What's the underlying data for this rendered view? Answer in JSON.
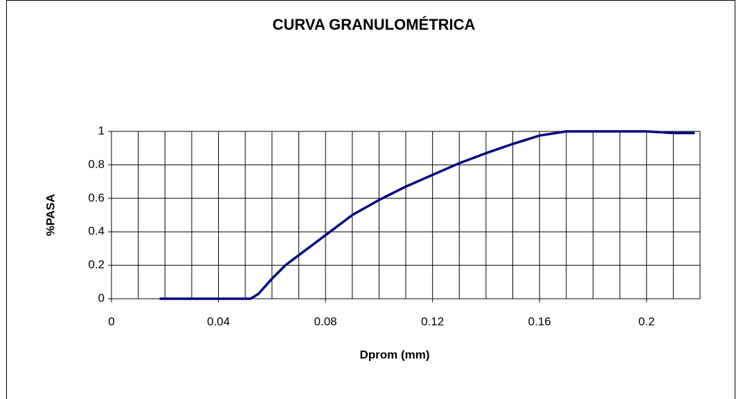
{
  "chart_data": {
    "type": "line",
    "title": "CURVA GRANULOMÉTRICA",
    "xlabel": "Dprom (mm)",
    "ylabel": "%PASA",
    "x": [
      0.018,
      0.03,
      0.04,
      0.052,
      0.055,
      0.06,
      0.065,
      0.07,
      0.08,
      0.09,
      0.1,
      0.11,
      0.12,
      0.13,
      0.14,
      0.15,
      0.16,
      0.17,
      0.18,
      0.2,
      0.21,
      0.218
    ],
    "series": [
      {
        "name": "%PASA",
        "color": "#000080",
        "values": [
          0,
          0,
          0,
          0,
          0.03,
          0.12,
          0.2,
          0.26,
          0.38,
          0.5,
          0.59,
          0.67,
          0.74,
          0.81,
          0.87,
          0.925,
          0.975,
          1,
          1,
          1,
          0.99,
          0.99
        ]
      }
    ],
    "xlim": [
      0,
      0.22
    ],
    "xticks": [
      0,
      0.04,
      0.08,
      0.12,
      0.16,
      0.2
    ],
    "xgrid": [
      0.01,
      0.02,
      0.03,
      0.05,
      0.06,
      0.07,
      0.09,
      0.1,
      0.11,
      0.13,
      0.14,
      0.15,
      0.17,
      0.18,
      0.19,
      0.21
    ],
    "ylim": [
      0,
      1
    ],
    "yticks": [
      0,
      0.2,
      0.4,
      0.6,
      0.8,
      1
    ],
    "grid": true
  }
}
